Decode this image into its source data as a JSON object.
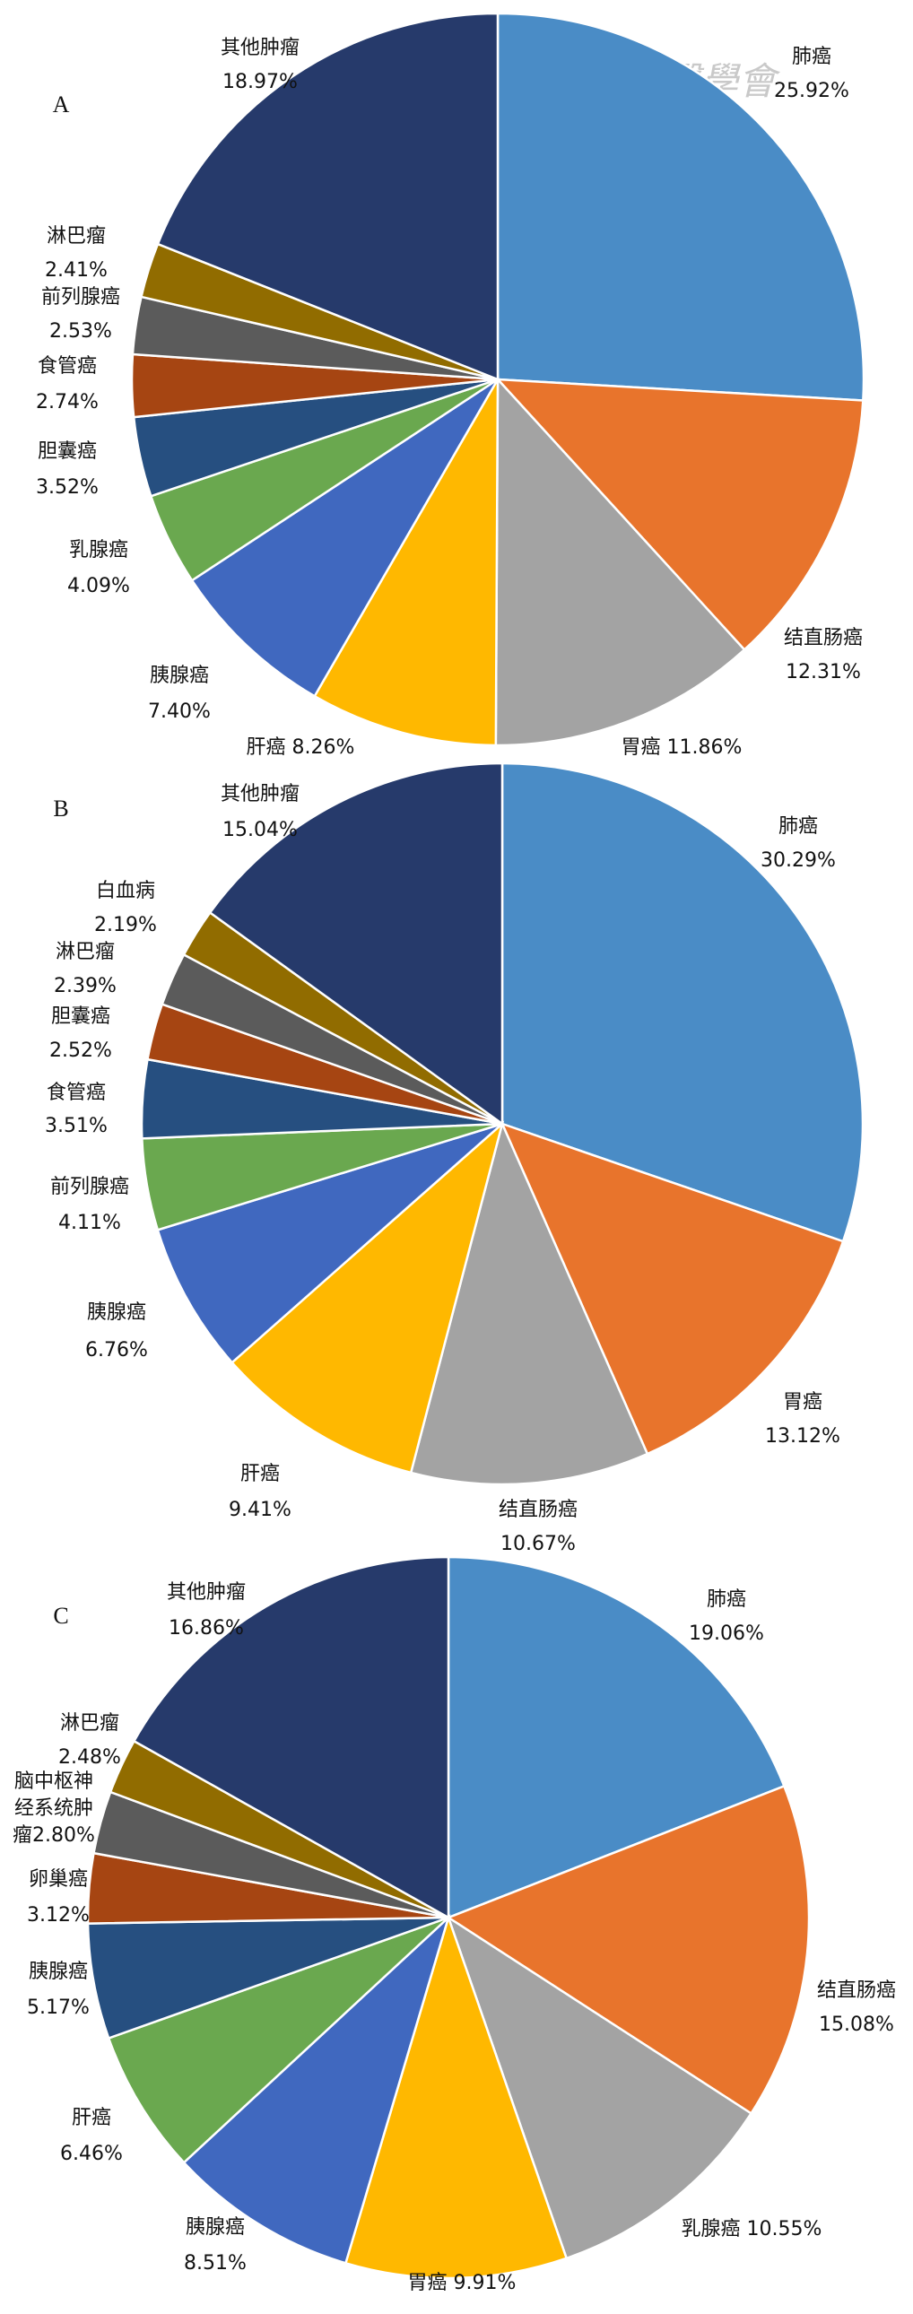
{
  "colors": {
    "blue": "#4a8cc6",
    "orange": "#e8742c",
    "gray": "#a3a3a3",
    "gold": "#ffb800",
    "royal": "#4068bf",
    "green": "#6aa84f",
    "navy_mid": "#264f80",
    "rust": "#a64512",
    "charcoal": "#5b5b5b",
    "olive": "#916c00",
    "navy": "#263a6b"
  },
  "watermark": {
    "text": "中華醫學會"
  },
  "chart_data": [
    {
      "type": "pie",
      "panel": "A",
      "slices": [
        {
          "name": "肺癌",
          "value": 25.92,
          "pct": "25.92%",
          "color": "blue"
        },
        {
          "name": "结直肠癌",
          "value": 12.31,
          "pct": "12.31%",
          "color": "orange"
        },
        {
          "name": "胃癌",
          "value": 11.86,
          "pct": "11.86%",
          "color": "gray"
        },
        {
          "name": "肝癌",
          "value": 8.26,
          "pct": "8.26%",
          "color": "gold"
        },
        {
          "name": "胰腺癌",
          "value": 7.4,
          "pct": "7.40%",
          "color": "royal"
        },
        {
          "name": "乳腺癌",
          "value": 4.09,
          "pct": "4.09%",
          "color": "green"
        },
        {
          "name": "胆囊癌",
          "value": 3.52,
          "pct": "3.52%",
          "color": "navy_mid"
        },
        {
          "name": "食管癌",
          "value": 2.74,
          "pct": "2.74%",
          "color": "rust"
        },
        {
          "name": "前列腺癌",
          "value": 2.53,
          "pct": "2.53%",
          "color": "charcoal"
        },
        {
          "name": "淋巴瘤",
          "value": 2.41,
          "pct": "2.41%",
          "color": "olive"
        },
        {
          "name": "其他肿瘤",
          "value": 18.97,
          "pct": "18.97%",
          "color": "navy"
        }
      ]
    },
    {
      "type": "pie",
      "panel": "B",
      "slices": [
        {
          "name": "肺癌",
          "value": 30.29,
          "pct": "30.29%",
          "color": "blue"
        },
        {
          "name": "胃癌",
          "value": 13.12,
          "pct": "13.12%",
          "color": "orange"
        },
        {
          "name": "结直肠癌",
          "value": 10.67,
          "pct": "10.67%",
          "color": "gray"
        },
        {
          "name": "肝癌",
          "value": 9.41,
          "pct": "9.41%",
          "color": "gold"
        },
        {
          "name": "胰腺癌",
          "value": 6.76,
          "pct": "6.76%",
          "color": "royal"
        },
        {
          "name": "前列腺癌",
          "value": 4.11,
          "pct": "4.11%",
          "color": "green"
        },
        {
          "name": "食管癌",
          "value": 3.51,
          "pct": "3.51%",
          "color": "navy_mid"
        },
        {
          "name": "胆囊癌",
          "value": 2.52,
          "pct": "2.52%",
          "color": "rust"
        },
        {
          "name": "淋巴瘤",
          "value": 2.39,
          "pct": "2.39%",
          "color": "charcoal"
        },
        {
          "name": "白血病",
          "value": 2.19,
          "pct": "2.19%",
          "color": "olive"
        },
        {
          "name": "其他肿瘤",
          "value": 15.04,
          "pct": "15.04%",
          "color": "navy"
        }
      ]
    },
    {
      "type": "pie",
      "panel": "C",
      "slices": [
        {
          "name": "肺癌",
          "value": 19.06,
          "pct": "19.06%",
          "color": "blue"
        },
        {
          "name": "结直肠癌",
          "value": 15.08,
          "pct": "15.08%",
          "color": "orange"
        },
        {
          "name": "乳腺癌",
          "value": 10.55,
          "pct": "10.55%",
          "color": "gray"
        },
        {
          "name": "胃癌",
          "value": 9.91,
          "pct": "9.91%",
          "color": "gold"
        },
        {
          "name": "胰腺癌",
          "value": 8.51,
          "pct": "8.51%",
          "color": "royal"
        },
        {
          "name": "肝癌",
          "value": 6.46,
          "pct": "6.46%",
          "color": "green"
        },
        {
          "name": "胰腺癌",
          "value": 5.17,
          "pct": "5.17%",
          "color": "navy_mid"
        },
        {
          "name": "卵巢癌",
          "value": 3.12,
          "pct": "3.12%",
          "color": "rust"
        },
        {
          "name": "脑中枢神经系统肿瘤",
          "value": 2.8,
          "pct": "2.80%",
          "color": "charcoal"
        },
        {
          "name": "淋巴瘤",
          "value": 2.48,
          "pct": "2.48%",
          "color": "olive"
        },
        {
          "name": "其他肿瘤",
          "value": 16.86,
          "pct": "16.86%",
          "color": "navy"
        }
      ]
    }
  ]
}
